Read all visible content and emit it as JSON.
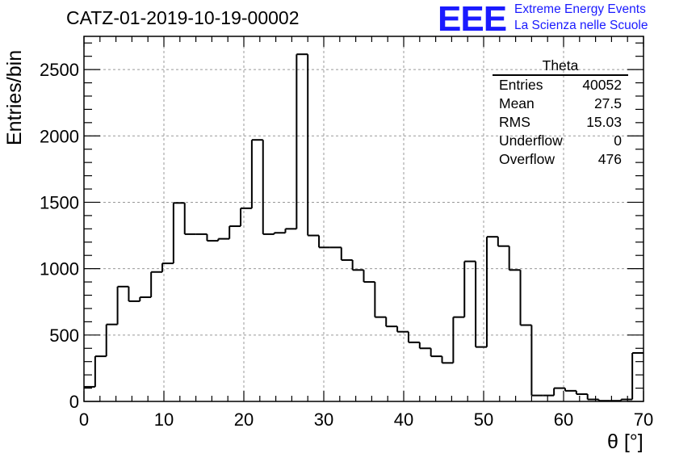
{
  "chart_data": {
    "type": "histogram",
    "title": "CATZ-01-2019-10-19-00002",
    "xlabel": "θ [°]",
    "ylabel": "Entries/bin",
    "xlim": [
      0,
      70
    ],
    "ylim": [
      0,
      2750
    ],
    "grid": true,
    "bin_width": 1.4,
    "x_ticks": [
      0,
      10,
      20,
      30,
      40,
      50,
      60,
      70
    ],
    "y_ticks": [
      0,
      500,
      1000,
      1500,
      2000,
      2500
    ],
    "bin_edges": [
      0,
      1.4,
      2.8,
      4.2,
      5.6,
      7.0,
      8.4,
      9.8,
      11.2,
      12.6,
      14.0,
      15.4,
      16.8,
      18.2,
      19.6,
      21.0,
      22.4,
      23.8,
      25.2,
      26.6,
      28.0,
      29.4,
      30.8,
      32.2,
      33.6,
      35.0,
      36.4,
      37.8,
      39.2,
      40.6,
      42.0,
      43.4,
      44.8,
      46.2,
      47.6,
      49.0,
      50.4,
      51.8,
      53.2,
      54.6,
      56.0,
      57.4,
      58.8,
      60.2,
      61.6,
      63.0,
      64.4,
      65.8,
      67.2,
      68.6,
      70.0
    ],
    "values": [
      110,
      340,
      580,
      865,
      755,
      785,
      975,
      1040,
      1495,
      1260,
      1260,
      1210,
      1225,
      1320,
      1455,
      1970,
      1260,
      1270,
      1300,
      2615,
      1250,
      1160,
      1160,
      1065,
      990,
      900,
      635,
      565,
      525,
      445,
      400,
      340,
      290,
      635,
      1055,
      410,
      1240,
      1170,
      990,
      575,
      45,
      45,
      100,
      80,
      55,
      15,
      5,
      5,
      15,
      365
    ],
    "stats": {
      "name": "Theta",
      "rows": [
        {
          "label": "Entries",
          "value": "40052"
        },
        {
          "label": "Mean",
          "value": "27.5"
        },
        {
          "label": "RMS",
          "value": "15.03"
        },
        {
          "label": "Underflow",
          "value": "0"
        },
        {
          "label": "Overflow",
          "value": "476"
        }
      ]
    },
    "colors": {
      "line": "#000000",
      "grid": "#999999",
      "logo": "#1a1aff"
    }
  },
  "logo": {
    "mark": "EEE",
    "line1": "Extreme Energy Events",
    "line2": "La Scienza nelle Scuole"
  }
}
